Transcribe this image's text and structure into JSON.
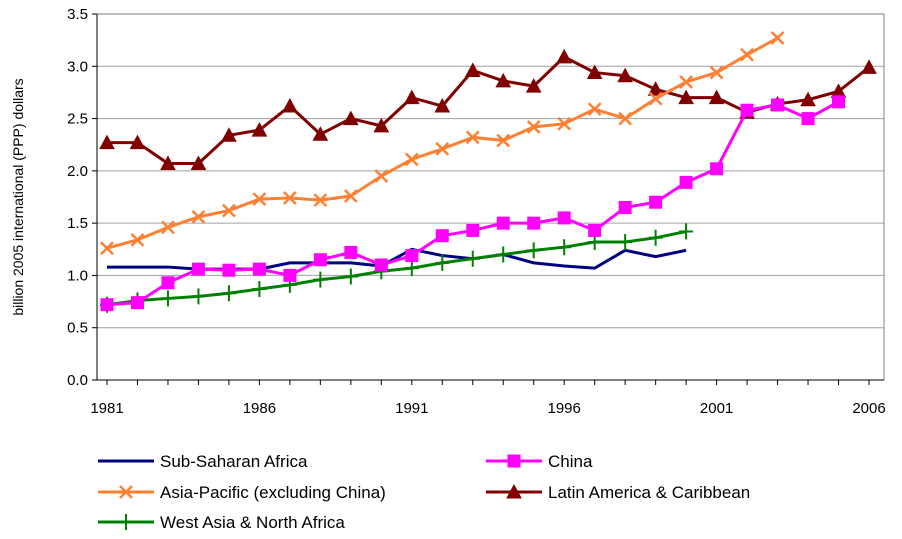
{
  "chart_data": {
    "type": "line",
    "title": "",
    "xlabel": "",
    "ylabel": "billion 2005 international (PPP) dollars",
    "xlim": [
      1981,
      2006
    ],
    "ylim": [
      0.0,
      3.5
    ],
    "x_ticks": [
      1981,
      1986,
      1991,
      1996,
      2001,
      2006
    ],
    "y_ticks": [
      0.0,
      0.5,
      1.0,
      1.5,
      2.0,
      2.5,
      3.0,
      3.5
    ],
    "y_tick_labels": [
      "0.0",
      "0.5",
      "1.0",
      "1.5",
      "2.0",
      "2.5",
      "3.0",
      "3.5"
    ],
    "grid": "horizontal",
    "legend_position": "bottom",
    "series": [
      {
        "name": "Sub-Saharan Africa",
        "color": "#000080",
        "marker": "none",
        "x": [
          1981,
          1982,
          1983,
          1984,
          1985,
          1986,
          1987,
          1988,
          1989,
          1990,
          1991,
          1992,
          1993,
          1994,
          1995,
          1996,
          1997,
          1998,
          1999,
          2000
        ],
        "values": [
          1.08,
          1.08,
          1.08,
          1.06,
          1.06,
          1.06,
          1.12,
          1.12,
          1.12,
          1.09,
          1.25,
          1.19,
          1.16,
          1.2,
          1.12,
          1.09,
          1.07,
          1.24,
          1.18,
          1.24
        ]
      },
      {
        "name": "China",
        "color": "#FF00FF",
        "marker": "square",
        "x": [
          1981,
          1982,
          1983,
          1984,
          1985,
          1986,
          1987,
          1988,
          1989,
          1990,
          1991,
          1992,
          1993,
          1994,
          1995,
          1996,
          1997,
          1998,
          1999,
          2000,
          2001,
          2002,
          2003,
          2004,
          2005
        ],
        "values": [
          0.72,
          0.74,
          0.93,
          1.06,
          1.05,
          1.06,
          1.0,
          1.15,
          1.22,
          1.1,
          1.19,
          1.38,
          1.43,
          1.5,
          1.5,
          1.55,
          1.43,
          1.65,
          1.7,
          1.89,
          2.02,
          2.58,
          2.63,
          2.5,
          2.66
        ]
      },
      {
        "name": "Asia-Pacific (excluding China)",
        "color": "#FF8033",
        "marker": "x",
        "x": [
          1981,
          1982,
          1983,
          1984,
          1985,
          1986,
          1987,
          1988,
          1989,
          1990,
          1991,
          1992,
          1993,
          1994,
          1995,
          1996,
          1997,
          1998,
          1999,
          2000,
          2001,
          2002,
          2003
        ],
        "values": [
          1.26,
          1.34,
          1.46,
          1.56,
          1.62,
          1.73,
          1.74,
          1.72,
          1.76,
          1.95,
          2.11,
          2.21,
          2.32,
          2.29,
          2.42,
          2.45,
          2.59,
          2.5,
          2.69,
          2.85,
          2.94,
          3.11,
          3.27
        ]
      },
      {
        "name": "Latin America & Caribbean",
        "color": "#800000",
        "marker": "triangle",
        "x": [
          1981,
          1982,
          1983,
          1984,
          1985,
          1986,
          1987,
          1988,
          1989,
          1990,
          1991,
          1992,
          1993,
          1994,
          1995,
          1996,
          1997,
          1998,
          1999,
          2000,
          2001,
          2002,
          2003,
          2004,
          2005,
          2006
        ],
        "values": [
          2.27,
          2.27,
          2.07,
          2.07,
          2.34,
          2.39,
          2.62,
          2.35,
          2.5,
          2.43,
          2.7,
          2.62,
          2.96,
          2.86,
          2.81,
          3.09,
          2.94,
          2.91,
          2.78,
          2.7,
          2.7,
          2.56,
          2.64,
          2.68,
          2.76,
          2.99
        ]
      },
      {
        "name": "West Asia & North Africa",
        "color": "#008000",
        "marker": "plus",
        "x": [
          1981,
          1982,
          1983,
          1984,
          1985,
          1986,
          1987,
          1988,
          1989,
          1990,
          1991,
          1992,
          1993,
          1994,
          1995,
          1996,
          1997,
          1998,
          1999,
          2000
        ],
        "values": [
          0.72,
          0.76,
          0.78,
          0.8,
          0.83,
          0.87,
          0.91,
          0.96,
          0.99,
          1.04,
          1.07,
          1.12,
          1.16,
          1.2,
          1.24,
          1.27,
          1.32,
          1.32,
          1.36,
          1.42
        ]
      }
    ]
  }
}
